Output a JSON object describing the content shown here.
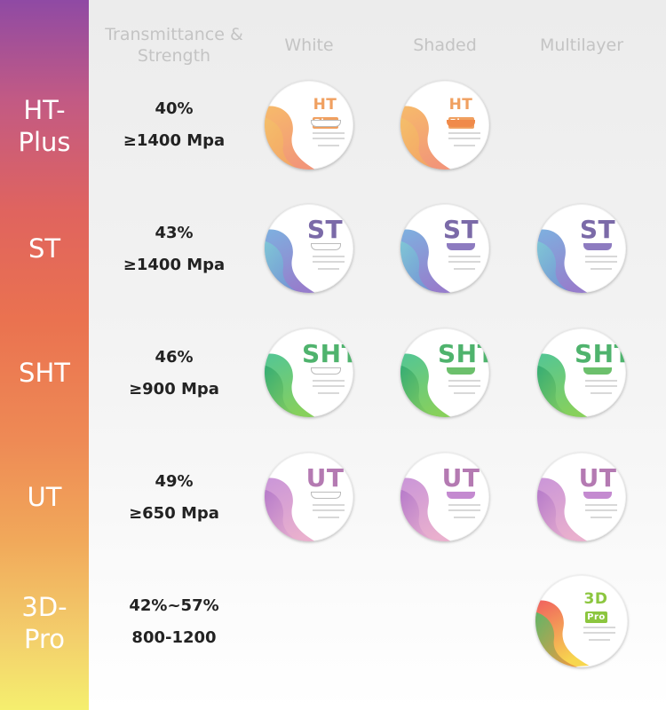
{
  "header": {
    "col1": "Transmittance & Strength",
    "col2": "White",
    "col3": "Shaded",
    "col4": "Multilayer"
  },
  "rows": [
    {
      "label": "HT-\nPlus",
      "transmittance": "40%",
      "strength": "≥1400 Mpa",
      "brand": "HT",
      "sub": "Plus",
      "color": "#f0a060",
      "discs": [
        "White",
        "Shaded"
      ]
    },
    {
      "label": "ST",
      "transmittance": "43%",
      "strength": "≥1400 Mpa",
      "brand": "ST",
      "color": "#7b6aa8",
      "discs": [
        "White",
        "Shaded",
        "Multilayer"
      ]
    },
    {
      "label": "SHT",
      "transmittance": "46%",
      "strength": "≥900 Mpa",
      "brand": "SHT",
      "color": "#4fb36d",
      "discs": [
        "White",
        "Shaded",
        "Multilayer"
      ]
    },
    {
      "label": "UT",
      "transmittance": "49%",
      "strength": "≥650 Mpa",
      "brand": "UT",
      "color": "#b47ab2",
      "discs": [
        "White",
        "Shaded",
        "Multilayer"
      ]
    },
    {
      "label": "3D-\nPro",
      "transmittance": "42%~57%",
      "strength": "800-1200",
      "brand": "3D",
      "sub": "Pro",
      "color": "#8cc63f",
      "discs": [
        "Multilayer"
      ]
    }
  ],
  "disc_text": {
    "HT": "HT",
    "HT_sub": "Plus",
    "ST": "ST",
    "SHT": "SHT",
    "UT": "UT",
    "3D": "3D",
    "3D_sub": "Pro"
  }
}
